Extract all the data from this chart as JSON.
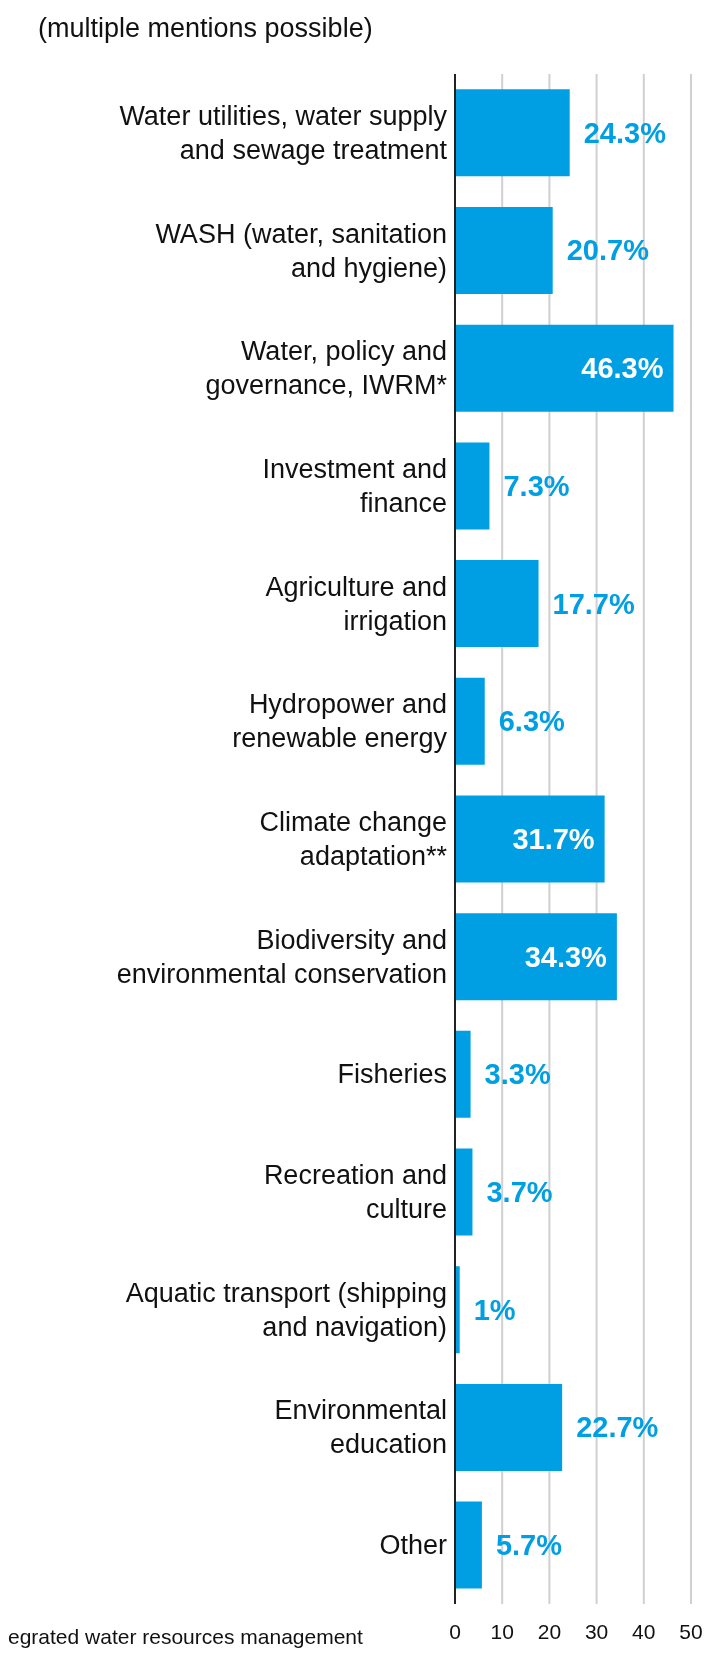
{
  "chart_data": {
    "type": "bar",
    "orientation": "horizontal",
    "title": "(multiple mentions possible)",
    "categories": [
      "Water utilities, water supply\nand sewage treatment",
      "WASH (water, sanitation\nand hygiene)",
      "Water, policy and\ngovernance, IWRM*",
      "Investment and\nfinance",
      "Agriculture and\nirrigation",
      "Hydropower and\nrenewable energy",
      "Climate change\nadaptation**",
      "Biodiversity and\nenvironmental conservation",
      "Fisheries",
      "Recreation and\nculture",
      "Aquatic transport (shipping\nand navigation)",
      "Environmental\neducation",
      "Other"
    ],
    "values": [
      24.3,
      20.7,
      46.3,
      7.3,
      17.7,
      6.3,
      31.7,
      34.3,
      3.3,
      3.7,
      1,
      22.7,
      5.7
    ],
    "value_labels": [
      "24.3%",
      "20.7%",
      "46.3%",
      "7.3%",
      "17.7%",
      "6.3%",
      "31.7%",
      "34.3%",
      "3.3%",
      "3.7%",
      "1%",
      "22.7%",
      "5.7%"
    ],
    "color": "#009fe3",
    "xlim": [
      0,
      50
    ],
    "xticks": [
      0,
      10,
      20,
      30,
      40,
      50
    ],
    "grid": "x",
    "annotations": [
      "egrated water resources management"
    ]
  }
}
